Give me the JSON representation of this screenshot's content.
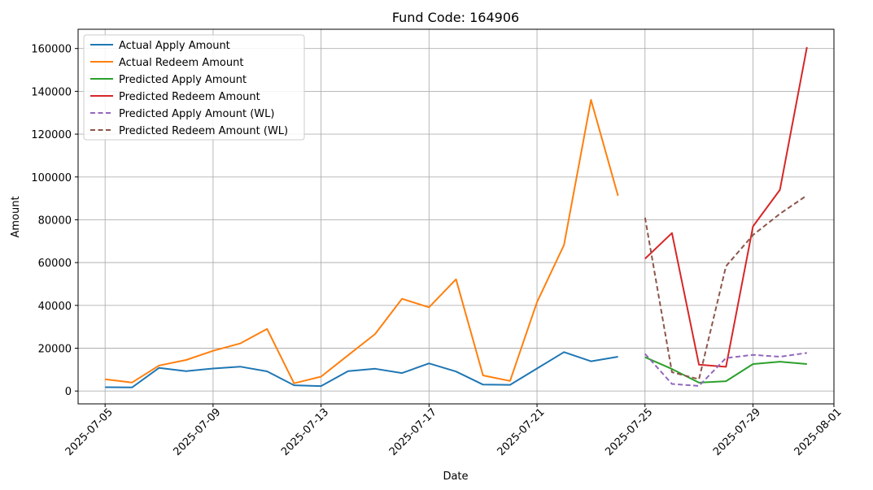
{
  "chart_data": {
    "type": "line",
    "title": "Fund Code: 164906",
    "xlabel": "Date",
    "ylabel": "Amount",
    "grid": true,
    "legend_position": "top-left",
    "xlim": [
      "2025-07-04",
      "2025-08-01"
    ],
    "ylim": [
      -6000,
      169000
    ],
    "x_ticks": [
      "2025-07-05",
      "2025-07-09",
      "2025-07-13",
      "2025-07-17",
      "2025-07-21",
      "2025-07-25",
      "2025-07-29",
      "2025-08-01"
    ],
    "y_ticks": [
      0,
      20000,
      40000,
      60000,
      80000,
      100000,
      120000,
      140000,
      160000
    ],
    "series": [
      {
        "name": "Actual Apply Amount",
        "color": "#1f77b4",
        "dash": "solid",
        "x": [
          "2025-07-05",
          "2025-07-06",
          "2025-07-07",
          "2025-07-08",
          "2025-07-09",
          "2025-07-10",
          "2025-07-11",
          "2025-07-12",
          "2025-07-13",
          "2025-07-14",
          "2025-07-15",
          "2025-07-16",
          "2025-07-17",
          "2025-07-18",
          "2025-07-19",
          "2025-07-20",
          "2025-07-21",
          "2025-07-22",
          "2025-07-23",
          "2025-07-24"
        ],
        "values": [
          1800,
          1700,
          10800,
          9300,
          10500,
          11400,
          9200,
          2700,
          2300,
          9300,
          10400,
          8400,
          12900,
          9100,
          3000,
          2900,
          10500,
          18200,
          13900,
          16000
        ]
      },
      {
        "name": "Actual Redeem Amount",
        "color": "#ff7f0e",
        "dash": "solid",
        "x": [
          "2025-07-05",
          "2025-07-06",
          "2025-07-07",
          "2025-07-08",
          "2025-07-09",
          "2025-07-10",
          "2025-07-11",
          "2025-07-12",
          "2025-07-13",
          "2025-07-14",
          "2025-07-15",
          "2025-07-16",
          "2025-07-17",
          "2025-07-18",
          "2025-07-19",
          "2025-07-20",
          "2025-07-21",
          "2025-07-22",
          "2025-07-23",
          "2025-07-24"
        ],
        "values": [
          5500,
          4000,
          11900,
          14500,
          18800,
          22200,
          29000,
          3600,
          6700,
          16700,
          26600,
          43100,
          39100,
          52200,
          7300,
          4700,
          41500,
          68200,
          136000,
          91200
        ]
      },
      {
        "name": "Predicted Apply Amount",
        "color": "#2ca02c",
        "dash": "solid",
        "x": [
          "2025-07-25",
          "2025-07-26",
          "2025-07-27",
          "2025-07-28",
          "2025-07-29",
          "2025-07-30",
          "2025-07-31"
        ],
        "values": [
          15800,
          10300,
          3900,
          4600,
          12600,
          13700,
          12600
        ]
      },
      {
        "name": "Predicted Redeem Amount",
        "color": "#d62728",
        "dash": "solid",
        "x": [
          "2025-07-25",
          "2025-07-26",
          "2025-07-27",
          "2025-07-28",
          "2025-07-29",
          "2025-07-30",
          "2025-07-31"
        ],
        "values": [
          61800,
          73800,
          12300,
          11300,
          76900,
          94000,
          160600
        ]
      },
      {
        "name": "Predicted Apply Amount (WL)",
        "color": "#9467bd",
        "dash": "dashed",
        "x": [
          "2025-07-25",
          "2025-07-26",
          "2025-07-27",
          "2025-07-28",
          "2025-07-29",
          "2025-07-30",
          "2025-07-31"
        ],
        "values": [
          17400,
          3300,
          2400,
          15400,
          16900,
          16000,
          17800
        ]
      },
      {
        "name": "Predicted Redeem Amount (WL)",
        "color": "#8c564b",
        "dash": "dashed",
        "x": [
          "2025-07-25",
          "2025-07-26",
          "2025-07-27",
          "2025-07-28",
          "2025-07-29",
          "2025-07-30",
          "2025-07-31"
        ],
        "values": [
          81000,
          8800,
          5500,
          58300,
          72900,
          82800,
          91400
        ]
      }
    ]
  }
}
